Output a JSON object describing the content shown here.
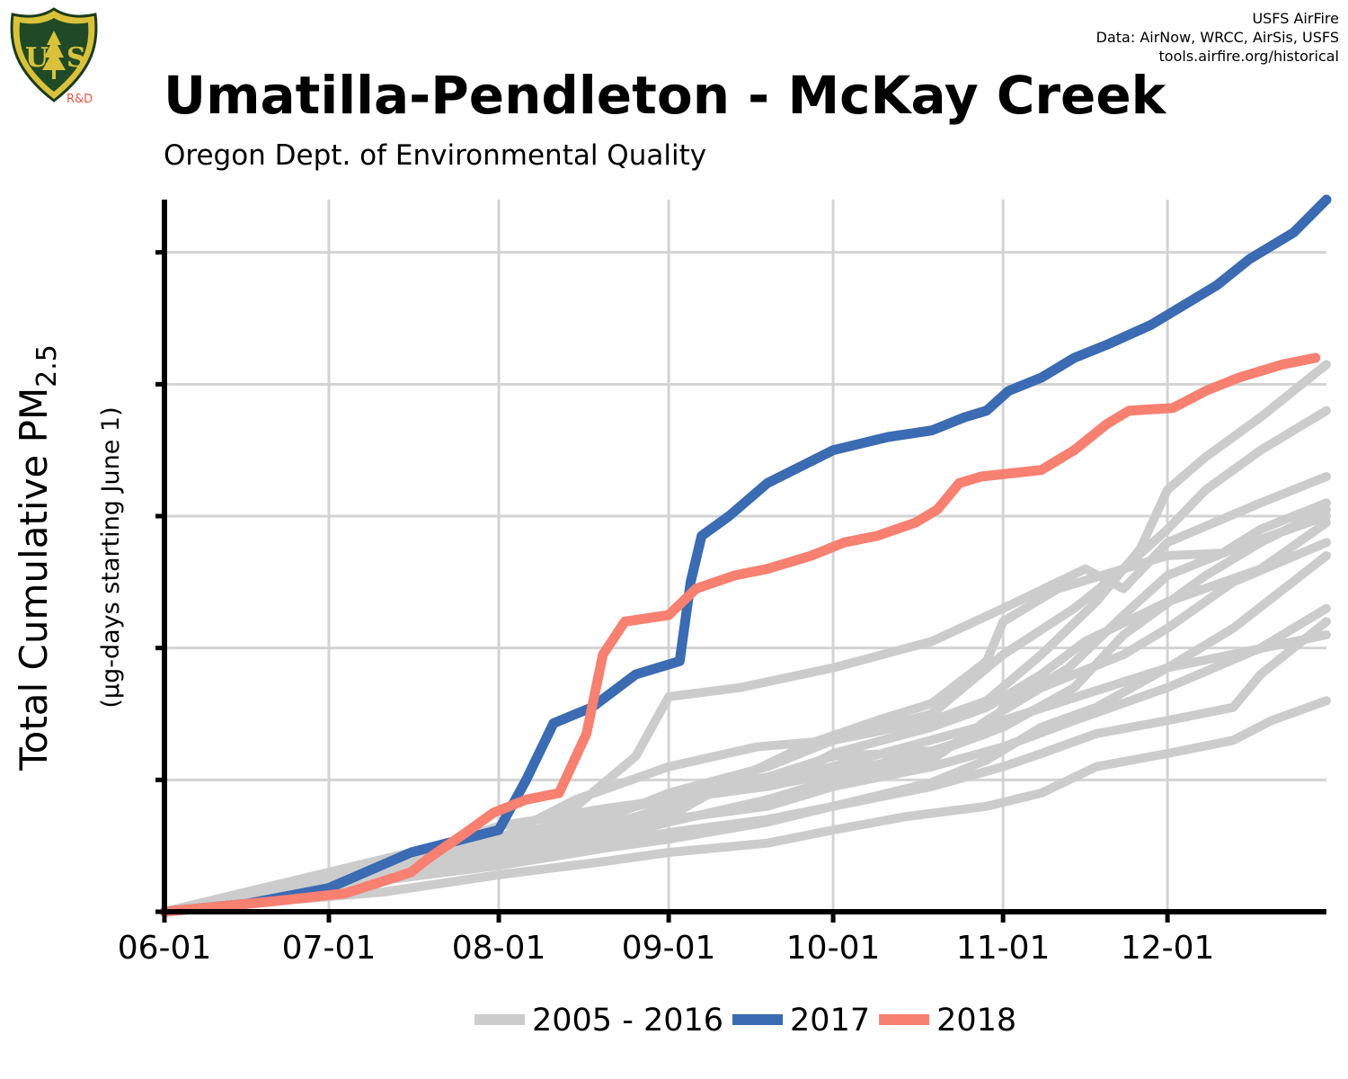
{
  "header": {
    "title": "Umatilla-Pendleton - McKay Creek",
    "subtitle": "Oregon Dept. of Environmental Quality",
    "credits": [
      "USFS AirFire",
      "Data: AirNow, WRCC, AirSis, USFS",
      "tools.airfire.org/historical"
    ]
  },
  "logo": {
    "top_text": "FOREST SERVICE",
    "letters": "US",
    "bottom_text": "DEPARTMENT OF AGRICULTURE",
    "tag": "R&D",
    "icon": "usfs-shield-icon"
  },
  "colors": {
    "history": "#cccccc",
    "y2017": "#3a6bb3",
    "y2018": "#f88070",
    "grid": "#d3d3d3",
    "axis": "#000000"
  },
  "chart_data": {
    "type": "line",
    "title": "Umatilla-Pendleton - McKay Creek",
    "subtitle": "Oregon Dept. of Environmental Quality",
    "ylabel_main": "Total Cumulative PM",
    "ylabel_sub_suffix": "2.5",
    "ylabel_units": "(µg-days starting June 1)",
    "x_ticks": [
      {
        "label": "06-01",
        "day": 0
      },
      {
        "label": "07-01",
        "day": 30
      },
      {
        "label": "08-01",
        "day": 61
      },
      {
        "label": "09-01",
        "day": 92
      },
      {
        "label": "10-01",
        "day": 122
      },
      {
        "label": "11-01",
        "day": 153
      },
      {
        "label": "12-01",
        "day": 183
      }
    ],
    "x_range": [
      "06-01",
      "12-31"
    ],
    "y_range": [
      0,
      5.4
    ],
    "y_tick_values": [
      0,
      1,
      2,
      3,
      4,
      5
    ],
    "y_tick_labels_shown": false,
    "grid": true,
    "legend": {
      "placement": "bottom",
      "items": [
        {
          "label": "2005 - 2016",
          "color": "#cccccc"
        },
        {
          "label": "2017",
          "color": "#3a6bb3"
        },
        {
          "label": "2018",
          "color": "#f88070"
        }
      ]
    },
    "series": [
      {
        "name": "2017",
        "color": "#3a6bb3",
        "points": [
          [
            0,
            0
          ],
          [
            15,
            0.06
          ],
          [
            30,
            0.18
          ],
          [
            45,
            0.45
          ],
          [
            61,
            0.62
          ],
          [
            66,
            1.0
          ],
          [
            71,
            1.43
          ],
          [
            78,
            1.55
          ],
          [
            86,
            1.8
          ],
          [
            94,
            1.9
          ],
          [
            96,
            2.5
          ],
          [
            98,
            2.85
          ],
          [
            103,
            3.0
          ],
          [
            110,
            3.25
          ],
          [
            122,
            3.5
          ],
          [
            132,
            3.6
          ],
          [
            140,
            3.65
          ],
          [
            146,
            3.75
          ],
          [
            150,
            3.8
          ],
          [
            154,
            3.95
          ],
          [
            160,
            4.05
          ],
          [
            166,
            4.2
          ],
          [
            172,
            4.3
          ],
          [
            180,
            4.45
          ],
          [
            186,
            4.6
          ],
          [
            192,
            4.75
          ],
          [
            198,
            4.95
          ],
          [
            206,
            5.15
          ],
          [
            212,
            5.4
          ]
        ]
      },
      {
        "name": "2018",
        "color": "#f88070",
        "points": [
          [
            0,
            0
          ],
          [
            20,
            0.08
          ],
          [
            33,
            0.14
          ],
          [
            45,
            0.3
          ],
          [
            48,
            0.4
          ],
          [
            55,
            0.6
          ],
          [
            60,
            0.75
          ],
          [
            66,
            0.85
          ],
          [
            72,
            0.9
          ],
          [
            77,
            1.35
          ],
          [
            80,
            1.95
          ],
          [
            84,
            2.2
          ],
          [
            92,
            2.25
          ],
          [
            97,
            2.45
          ],
          [
            104,
            2.55
          ],
          [
            110,
            2.6
          ],
          [
            118,
            2.7
          ],
          [
            124,
            2.8
          ],
          [
            130,
            2.85
          ],
          [
            137,
            2.95
          ],
          [
            141,
            3.05
          ],
          [
            145,
            3.25
          ],
          [
            149,
            3.3
          ],
          [
            160,
            3.35
          ],
          [
            166,
            3.5
          ],
          [
            172,
            3.7
          ],
          [
            176,
            3.8
          ],
          [
            184,
            3.82
          ],
          [
            190,
            3.95
          ],
          [
            196,
            4.05
          ],
          [
            204,
            4.15
          ],
          [
            210,
            4.2
          ]
        ]
      },
      {
        "name": "",
        "color": "#cccccc",
        "points": [
          [
            0,
            0
          ],
          [
            20,
            0.18
          ],
          [
            40,
            0.35
          ],
          [
            61,
            0.65
          ],
          [
            80,
            0.78
          ],
          [
            92,
            0.85
          ],
          [
            122,
            1.1
          ],
          [
            153,
            1.45
          ],
          [
            183,
            1.85
          ],
          [
            212,
            2.1
          ]
        ]
      },
      {
        "name": "",
        "color": "#cccccc",
        "points": [
          [
            0,
            0
          ],
          [
            15,
            0.12
          ],
          [
            30,
            0.25
          ],
          [
            50,
            0.42
          ],
          [
            70,
            0.62
          ],
          [
            86,
            1.18
          ],
          [
            92,
            1.63
          ],
          [
            105,
            1.7
          ],
          [
            122,
            1.85
          ],
          [
            140,
            2.05
          ],
          [
            153,
            2.3
          ],
          [
            168,
            2.6
          ],
          [
            175,
            2.45
          ],
          [
            183,
            2.8
          ],
          [
            200,
            3.1
          ],
          [
            212,
            3.3
          ]
        ]
      },
      {
        "name": "",
        "color": "#cccccc",
        "points": [
          [
            0,
            0
          ],
          [
            15,
            0.15
          ],
          [
            30,
            0.3
          ],
          [
            45,
            0.45
          ],
          [
            61,
            0.55
          ],
          [
            75,
            0.85
          ],
          [
            92,
            1.1
          ],
          [
            108,
            1.25
          ],
          [
            122,
            1.3
          ],
          [
            140,
            1.5
          ],
          [
            153,
            1.95
          ],
          [
            166,
            2.3
          ],
          [
            175,
            2.6
          ],
          [
            183,
            2.9
          ],
          [
            190,
            3.2
          ],
          [
            200,
            3.5
          ],
          [
            212,
            3.8
          ]
        ]
      },
      {
        "name": "",
        "color": "#cccccc",
        "points": [
          [
            0,
            0
          ],
          [
            20,
            0.2
          ],
          [
            40,
            0.38
          ],
          [
            61,
            0.55
          ],
          [
            80,
            0.75
          ],
          [
            92,
            0.85
          ],
          [
            110,
            0.95
          ],
          [
            122,
            1.05
          ],
          [
            140,
            1.2
          ],
          [
            153,
            1.4
          ],
          [
            166,
            1.7
          ],
          [
            175,
            2.1
          ],
          [
            190,
            2.55
          ],
          [
            200,
            2.8
          ],
          [
            212,
            3.05
          ]
        ]
      },
      {
        "name": "",
        "color": "#cccccc",
        "points": [
          [
            0,
            0
          ],
          [
            20,
            0.15
          ],
          [
            40,
            0.3
          ],
          [
            61,
            0.45
          ],
          [
            80,
            0.6
          ],
          [
            92,
            0.7
          ],
          [
            110,
            0.8
          ],
          [
            122,
            0.95
          ],
          [
            140,
            1.1
          ],
          [
            153,
            1.25
          ],
          [
            166,
            1.45
          ],
          [
            183,
            1.7
          ],
          [
            200,
            2.0
          ],
          [
            212,
            2.3
          ]
        ]
      },
      {
        "name": "",
        "color": "#cccccc",
        "points": [
          [
            0,
            0
          ],
          [
            20,
            0.14
          ],
          [
            40,
            0.28
          ],
          [
            61,
            0.42
          ],
          [
            80,
            0.58
          ],
          [
            92,
            0.72
          ],
          [
            103,
            0.98
          ],
          [
            115,
            1.05
          ],
          [
            122,
            1.2
          ],
          [
            140,
            1.4
          ],
          [
            150,
            1.55
          ],
          [
            160,
            1.8
          ],
          [
            168,
            2.05
          ],
          [
            183,
            2.35
          ],
          [
            200,
            2.6
          ],
          [
            212,
            2.95
          ]
        ]
      },
      {
        "name": "",
        "color": "#cccccc",
        "points": [
          [
            0,
            0
          ],
          [
            20,
            0.16
          ],
          [
            40,
            0.34
          ],
          [
            61,
            0.5
          ],
          [
            80,
            0.64
          ],
          [
            92,
            0.8
          ],
          [
            110,
            1.02
          ],
          [
            122,
            1.18
          ],
          [
            133,
            1.2
          ],
          [
            140,
            1.22
          ],
          [
            150,
            1.35
          ],
          [
            153,
            1.55
          ],
          [
            165,
            1.85
          ],
          [
            175,
            2.25
          ],
          [
            183,
            2.55
          ],
          [
            195,
            2.75
          ],
          [
            212,
            3.0
          ]
        ]
      },
      {
        "name": "",
        "color": "#cccccc",
        "points": [
          [
            0,
            0
          ],
          [
            20,
            0.1
          ],
          [
            40,
            0.25
          ],
          [
            61,
            0.4
          ],
          [
            80,
            0.52
          ],
          [
            92,
            0.6
          ],
          [
            110,
            0.7
          ],
          [
            122,
            0.8
          ],
          [
            140,
            0.95
          ],
          [
            153,
            1.1
          ],
          [
            160,
            1.2
          ],
          [
            170,
            1.35
          ],
          [
            183,
            1.45
          ],
          [
            195,
            1.55
          ],
          [
            200,
            1.8
          ],
          [
            212,
            2.2
          ]
        ]
      },
      {
        "name": "",
        "color": "#cccccc",
        "points": [
          [
            0,
            0
          ],
          [
            20,
            0.12
          ],
          [
            40,
            0.26
          ],
          [
            61,
            0.4
          ],
          [
            80,
            0.55
          ],
          [
            92,
            0.68
          ],
          [
            110,
            0.85
          ],
          [
            122,
            1.0
          ],
          [
            140,
            1.15
          ],
          [
            150,
            1.45
          ],
          [
            160,
            1.7
          ],
          [
            175,
            1.95
          ],
          [
            183,
            2.15
          ],
          [
            195,
            2.5
          ],
          [
            212,
            2.8
          ]
        ]
      },
      {
        "name": "",
        "color": "#cccccc",
        "points": [
          [
            0,
            0
          ],
          [
            20,
            0.08
          ],
          [
            40,
            0.15
          ],
          [
            61,
            0.28
          ],
          [
            80,
            0.38
          ],
          [
            92,
            0.45
          ],
          [
            110,
            0.52
          ],
          [
            122,
            0.62
          ],
          [
            135,
            0.72
          ],
          [
            150,
            0.8
          ],
          [
            160,
            0.9
          ],
          [
            170,
            1.1
          ],
          [
            183,
            1.2
          ],
          [
            195,
            1.3
          ],
          [
            202,
            1.45
          ],
          [
            212,
            1.6
          ]
        ]
      },
      {
        "name": "",
        "color": "#cccccc",
        "points": [
          [
            0,
            0
          ],
          [
            20,
            0.15
          ],
          [
            40,
            0.3
          ],
          [
            61,
            0.44
          ],
          [
            80,
            0.6
          ],
          [
            92,
            0.78
          ],
          [
            105,
            1.02
          ],
          [
            118,
            1.28
          ],
          [
            130,
            1.45
          ],
          [
            140,
            1.58
          ],
          [
            150,
            1.9
          ],
          [
            153,
            2.2
          ],
          [
            163,
            2.45
          ],
          [
            175,
            2.6
          ],
          [
            183,
            2.7
          ],
          [
            193,
            2.72
          ],
          [
            200,
            2.9
          ],
          [
            212,
            3.1
          ]
        ]
      },
      {
        "name": "",
        "color": "#cccccc",
        "points": [
          [
            0,
            0
          ],
          [
            20,
            0.18
          ],
          [
            40,
            0.36
          ],
          [
            61,
            0.54
          ],
          [
            80,
            0.7
          ],
          [
            92,
            0.9
          ],
          [
            110,
            1.1
          ],
          [
            122,
            1.3
          ],
          [
            140,
            1.45
          ],
          [
            150,
            1.6
          ],
          [
            160,
            1.95
          ],
          [
            170,
            2.35
          ],
          [
            178,
            2.75
          ],
          [
            183,
            3.2
          ],
          [
            190,
            3.45
          ],
          [
            200,
            3.75
          ],
          [
            212,
            4.15
          ]
        ]
      },
      {
        "name": "",
        "color": "#cccccc",
        "points": [
          [
            0,
            0
          ],
          [
            20,
            0.1
          ],
          [
            40,
            0.24
          ],
          [
            61,
            0.35
          ],
          [
            80,
            0.48
          ],
          [
            92,
            0.55
          ],
          [
            110,
            0.68
          ],
          [
            122,
            0.8
          ],
          [
            140,
            0.98
          ],
          [
            150,
            1.15
          ],
          [
            160,
            1.4
          ],
          [
            170,
            1.55
          ],
          [
            183,
            1.85
          ],
          [
            195,
            2.15
          ],
          [
            212,
            2.7
          ]
        ]
      }
    ]
  }
}
